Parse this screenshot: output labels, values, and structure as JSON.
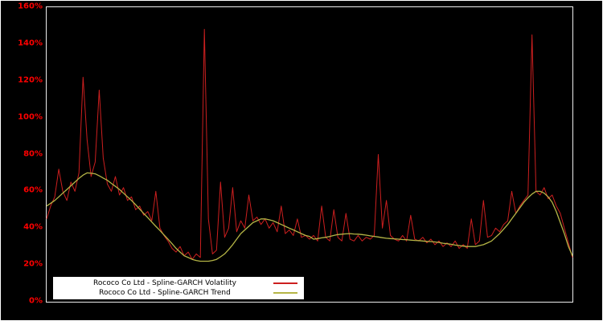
{
  "chart_data": {
    "type": "line",
    "title": "",
    "xlabel": "",
    "ylabel": "",
    "ylim": [
      0,
      160
    ],
    "y_ticks": [
      "0%",
      "20%",
      "40%",
      "60%",
      "80%",
      "100%",
      "120%",
      "140%",
      "160%"
    ],
    "y_tick_values": [
      0,
      20,
      40,
      60,
      80,
      100,
      120,
      140,
      160
    ],
    "grid": false,
    "legend_position": "bottom-left",
    "background_color": "#000000",
    "tick_label_color": "#ff0000",
    "series": [
      {
        "name": "Rococo Co Ltd - Spline-GARCH Volatility",
        "color": "#cc1f1f",
        "stroke_width": 1,
        "values": [
          45,
          52,
          57,
          72,
          60,
          55,
          65,
          60,
          70,
          122,
          88,
          68,
          76,
          115,
          78,
          64,
          60,
          68,
          58,
          62,
          55,
          57,
          50,
          52,
          47,
          49,
          44,
          60,
          40,
          36,
          33,
          29,
          27,
          30,
          25,
          27,
          23,
          26,
          24,
          148,
          45,
          26,
          28,
          65,
          35,
          40,
          62,
          38,
          44,
          40,
          58,
          44,
          46,
          42,
          45,
          40,
          43,
          38,
          52,
          37,
          39,
          36,
          45,
          35,
          36,
          34,
          36,
          33,
          52,
          35,
          33,
          50,
          35,
          33,
          48,
          34,
          33,
          36,
          33,
          35,
          34,
          36,
          80,
          40,
          55,
          36,
          34,
          33,
          36,
          33,
          47,
          34,
          33,
          35,
          32,
          34,
          31,
          33,
          30,
          32,
          30,
          33,
          29,
          31,
          29,
          45,
          31,
          33,
          55,
          35,
          36,
          40,
          38,
          42,
          44,
          60,
          48,
          52,
          55,
          58,
          145,
          60,
          58,
          62,
          56,
          58,
          52,
          48,
          40,
          32,
          24
        ]
      },
      {
        "name": "Rococo Co Ltd - Spline-GARCH Trend",
        "color": "#b5b546",
        "stroke_width": 1.3,
        "values": [
          52,
          53.5,
          55,
          57,
          59,
          61,
          63,
          65,
          67,
          68.8,
          70,
          69.8,
          69.5,
          68.4,
          67.2,
          66,
          64.3,
          62.7,
          61,
          59,
          57,
          55,
          52.7,
          50.3,
          48,
          45.7,
          43.3,
          41,
          38.7,
          36.3,
          34,
          31.5,
          29,
          27,
          25,
          24,
          23,
          22.4,
          22,
          22,
          22,
          22.4,
          23,
          24.4,
          26,
          28.4,
          31,
          34,
          37,
          39,
          41,
          43,
          44,
          45,
          45,
          44.5,
          44,
          43,
          42,
          41,
          40,
          39,
          38,
          37,
          36,
          35.5,
          34,
          34.3,
          34.7,
          35,
          35.5,
          36,
          36.5,
          36.7,
          36.9,
          37,
          36.8,
          36.7,
          36.5,
          36.2,
          35.8,
          35.5,
          35.2,
          34.8,
          34.5,
          34.3,
          34.2,
          34,
          33.8,
          33.7,
          33.5,
          33.3,
          33.2,
          33,
          32.8,
          32.7,
          32.5,
          32.2,
          31.8,
          31.5,
          31.2,
          30.8,
          30.5,
          30.2,
          30,
          30,
          30,
          30.5,
          31,
          32,
          33,
          35,
          37,
          39.5,
          42,
          45,
          48,
          51,
          54,
          56.5,
          58.5,
          60,
          60,
          59,
          57,
          54,
          49,
          43,
          37,
          30,
          25
        ]
      }
    ]
  },
  "legend": {
    "items": [
      {
        "label": "Rococo Co Ltd - Spline-GARCH Volatility"
      },
      {
        "label": "Rococo Co Ltd - Spline-GARCH Trend"
      }
    ]
  }
}
